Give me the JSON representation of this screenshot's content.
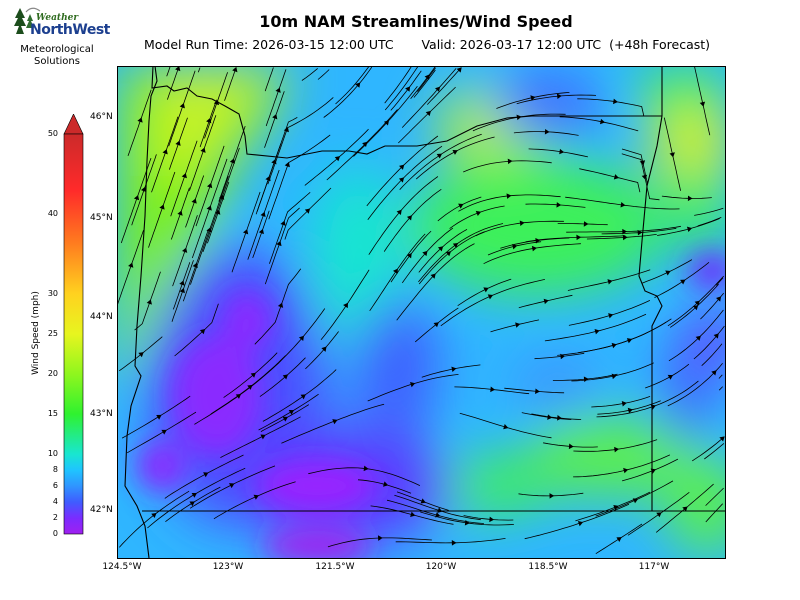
{
  "logo": {
    "brand_line1": "Weather",
    "brand_line2": "NorthWest",
    "subtitle_line1": "Meteorological",
    "subtitle_line2": "Solutions"
  },
  "header": {
    "title": "10m NAM Streamlines/Wind Speed",
    "model_run": "Model Run Time: 2026-03-15 12:00 UTC",
    "valid": "Valid: 2026-03-17 12:00 UTC  (+48h Forecast)"
  },
  "map": {
    "latitude_labels": [
      "46°N",
      "45°N",
      "44°N",
      "43°N",
      "42°N"
    ],
    "longitude_labels": [
      "124.5°W",
      "123°W",
      "121.5°W",
      "120°W",
      "118.5°W",
      "117°W"
    ]
  },
  "colorbar": {
    "label": "Wind Speed (mph)",
    "ticks": [
      "0",
      "2",
      "4",
      "6",
      "8",
      "10",
      "15",
      "20",
      "25",
      "30",
      "40",
      "50"
    ],
    "tick_values": [
      0,
      2,
      4,
      6,
      8,
      10,
      15,
      20,
      25,
      30,
      40,
      50
    ],
    "colors": [
      "#a020f0",
      "#7a2cff",
      "#3f5cff",
      "#2f95ff",
      "#1fc4ff",
      "#19e6d0",
      "#2ff22f",
      "#8ff61e",
      "#e7f51f",
      "#ffd21f",
      "#ff7a1f",
      "#ff2a2a",
      "#cc2a2a"
    ]
  }
}
